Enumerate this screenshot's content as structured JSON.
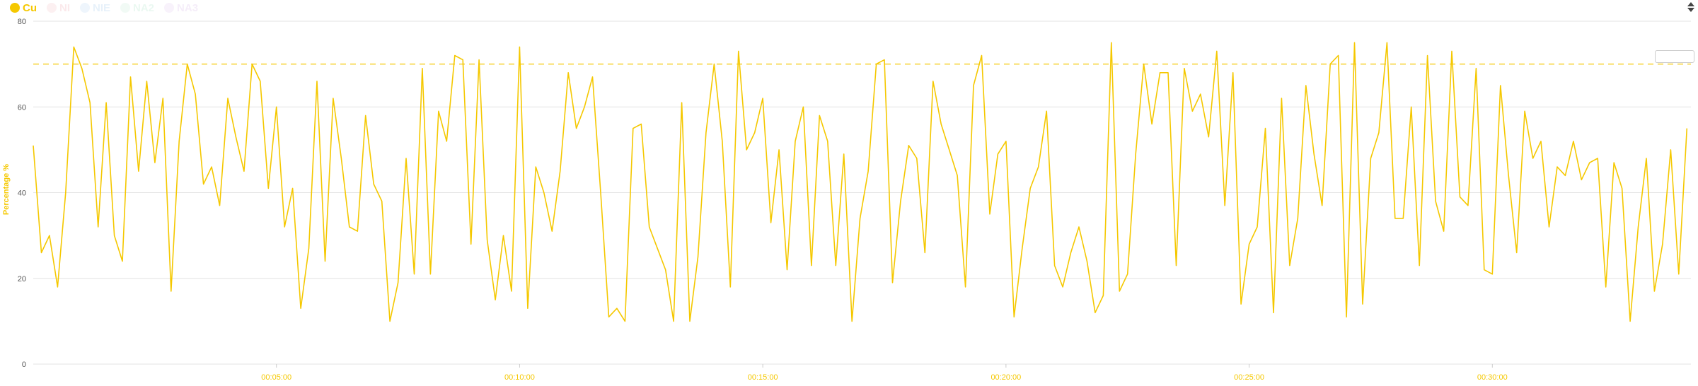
{
  "legend": [
    {
      "label": "Cu",
      "color": "#f5c800",
      "active": true,
      "icon": "legend-dot-icon"
    },
    {
      "label": "NI",
      "color": "#f4c2c8",
      "active": false,
      "icon": "legend-dot-icon"
    },
    {
      "label": "NIE",
      "color": "#bcd9f2",
      "active": false,
      "icon": "legend-dot-icon"
    },
    {
      "label": "NA2",
      "color": "#c6ecd9",
      "active": false,
      "icon": "legend-dot-icon"
    },
    {
      "label": "NA3",
      "color": "#e3cdef",
      "active": false,
      "icon": "legend-dot-icon"
    }
  ],
  "chart_data": {
    "type": "line",
    "ylabel": "Percentage %",
    "ylim": [
      0,
      80
    ],
    "yticks": [
      0,
      20,
      40,
      60,
      80
    ],
    "x_unit": "seconds",
    "xlim": [
      0,
      2045
    ],
    "xticks": [
      {
        "value": 300,
        "label": "00:05:00"
      },
      {
        "value": 600,
        "label": "00:10:00"
      },
      {
        "value": 900,
        "label": "00:15:00"
      },
      {
        "value": 1200,
        "label": "00:20:00"
      },
      {
        "value": 1500,
        "label": "00:25:00"
      },
      {
        "value": 1800,
        "label": "00:30:00"
      }
    ],
    "reference_line": {
      "value": 70,
      "style": "dashed",
      "color": "#f5c800"
    },
    "grid": true,
    "line_color": "#f5c800",
    "series": [
      {
        "name": "Cu",
        "step_seconds": 10,
        "values": [
          51,
          26,
          30,
          18,
          40,
          74,
          69,
          61,
          32,
          61,
          30,
          24,
          67,
          45,
          66,
          47,
          62,
          17,
          52,
          70,
          63,
          42,
          46,
          37,
          62,
          53,
          45,
          70,
          66,
          41,
          60,
          32,
          41,
          13,
          27,
          66,
          24,
          62,
          48,
          32,
          31,
          58,
          42,
          38,
          10,
          19,
          48,
          21,
          69,
          21,
          59,
          52,
          72,
          71,
          28,
          71,
          29,
          15,
          30,
          17,
          74,
          13,
          46,
          40,
          31,
          45,
          68,
          55,
          60,
          67,
          40,
          11,
          13,
          10,
          55,
          56,
          32,
          27,
          22,
          10,
          61,
          10,
          25,
          54,
          70,
          52,
          18,
          73,
          50,
          54,
          62,
          33,
          50,
          22,
          52,
          60,
          23,
          58,
          52,
          23,
          49,
          10,
          34,
          45,
          70,
          71,
          19,
          38,
          51,
          48,
          26,
          66,
          56,
          50,
          44,
          18,
          65,
          72,
          35,
          49,
          52,
          11,
          27,
          41,
          46,
          59,
          23,
          18,
          26,
          32,
          24,
          12,
          16,
          75,
          17,
          21,
          49,
          70,
          56,
          68,
          68,
          23,
          69,
          59,
          63,
          53,
          73,
          37,
          68,
          14,
          28,
          32,
          55,
          12,
          62,
          23,
          34,
          65,
          49,
          37,
          70,
          72,
          11,
          75,
          14,
          48,
          54,
          75,
          34,
          34,
          60,
          23,
          72,
          38,
          31,
          73,
          39,
          37,
          69,
          22,
          21,
          65,
          44,
          26,
          59,
          48,
          52,
          32,
          46,
          44,
          52,
          43,
          47,
          48,
          18,
          47,
          41,
          10,
          32,
          48,
          17,
          28,
          50,
          21,
          55
        ]
      }
    ]
  }
}
